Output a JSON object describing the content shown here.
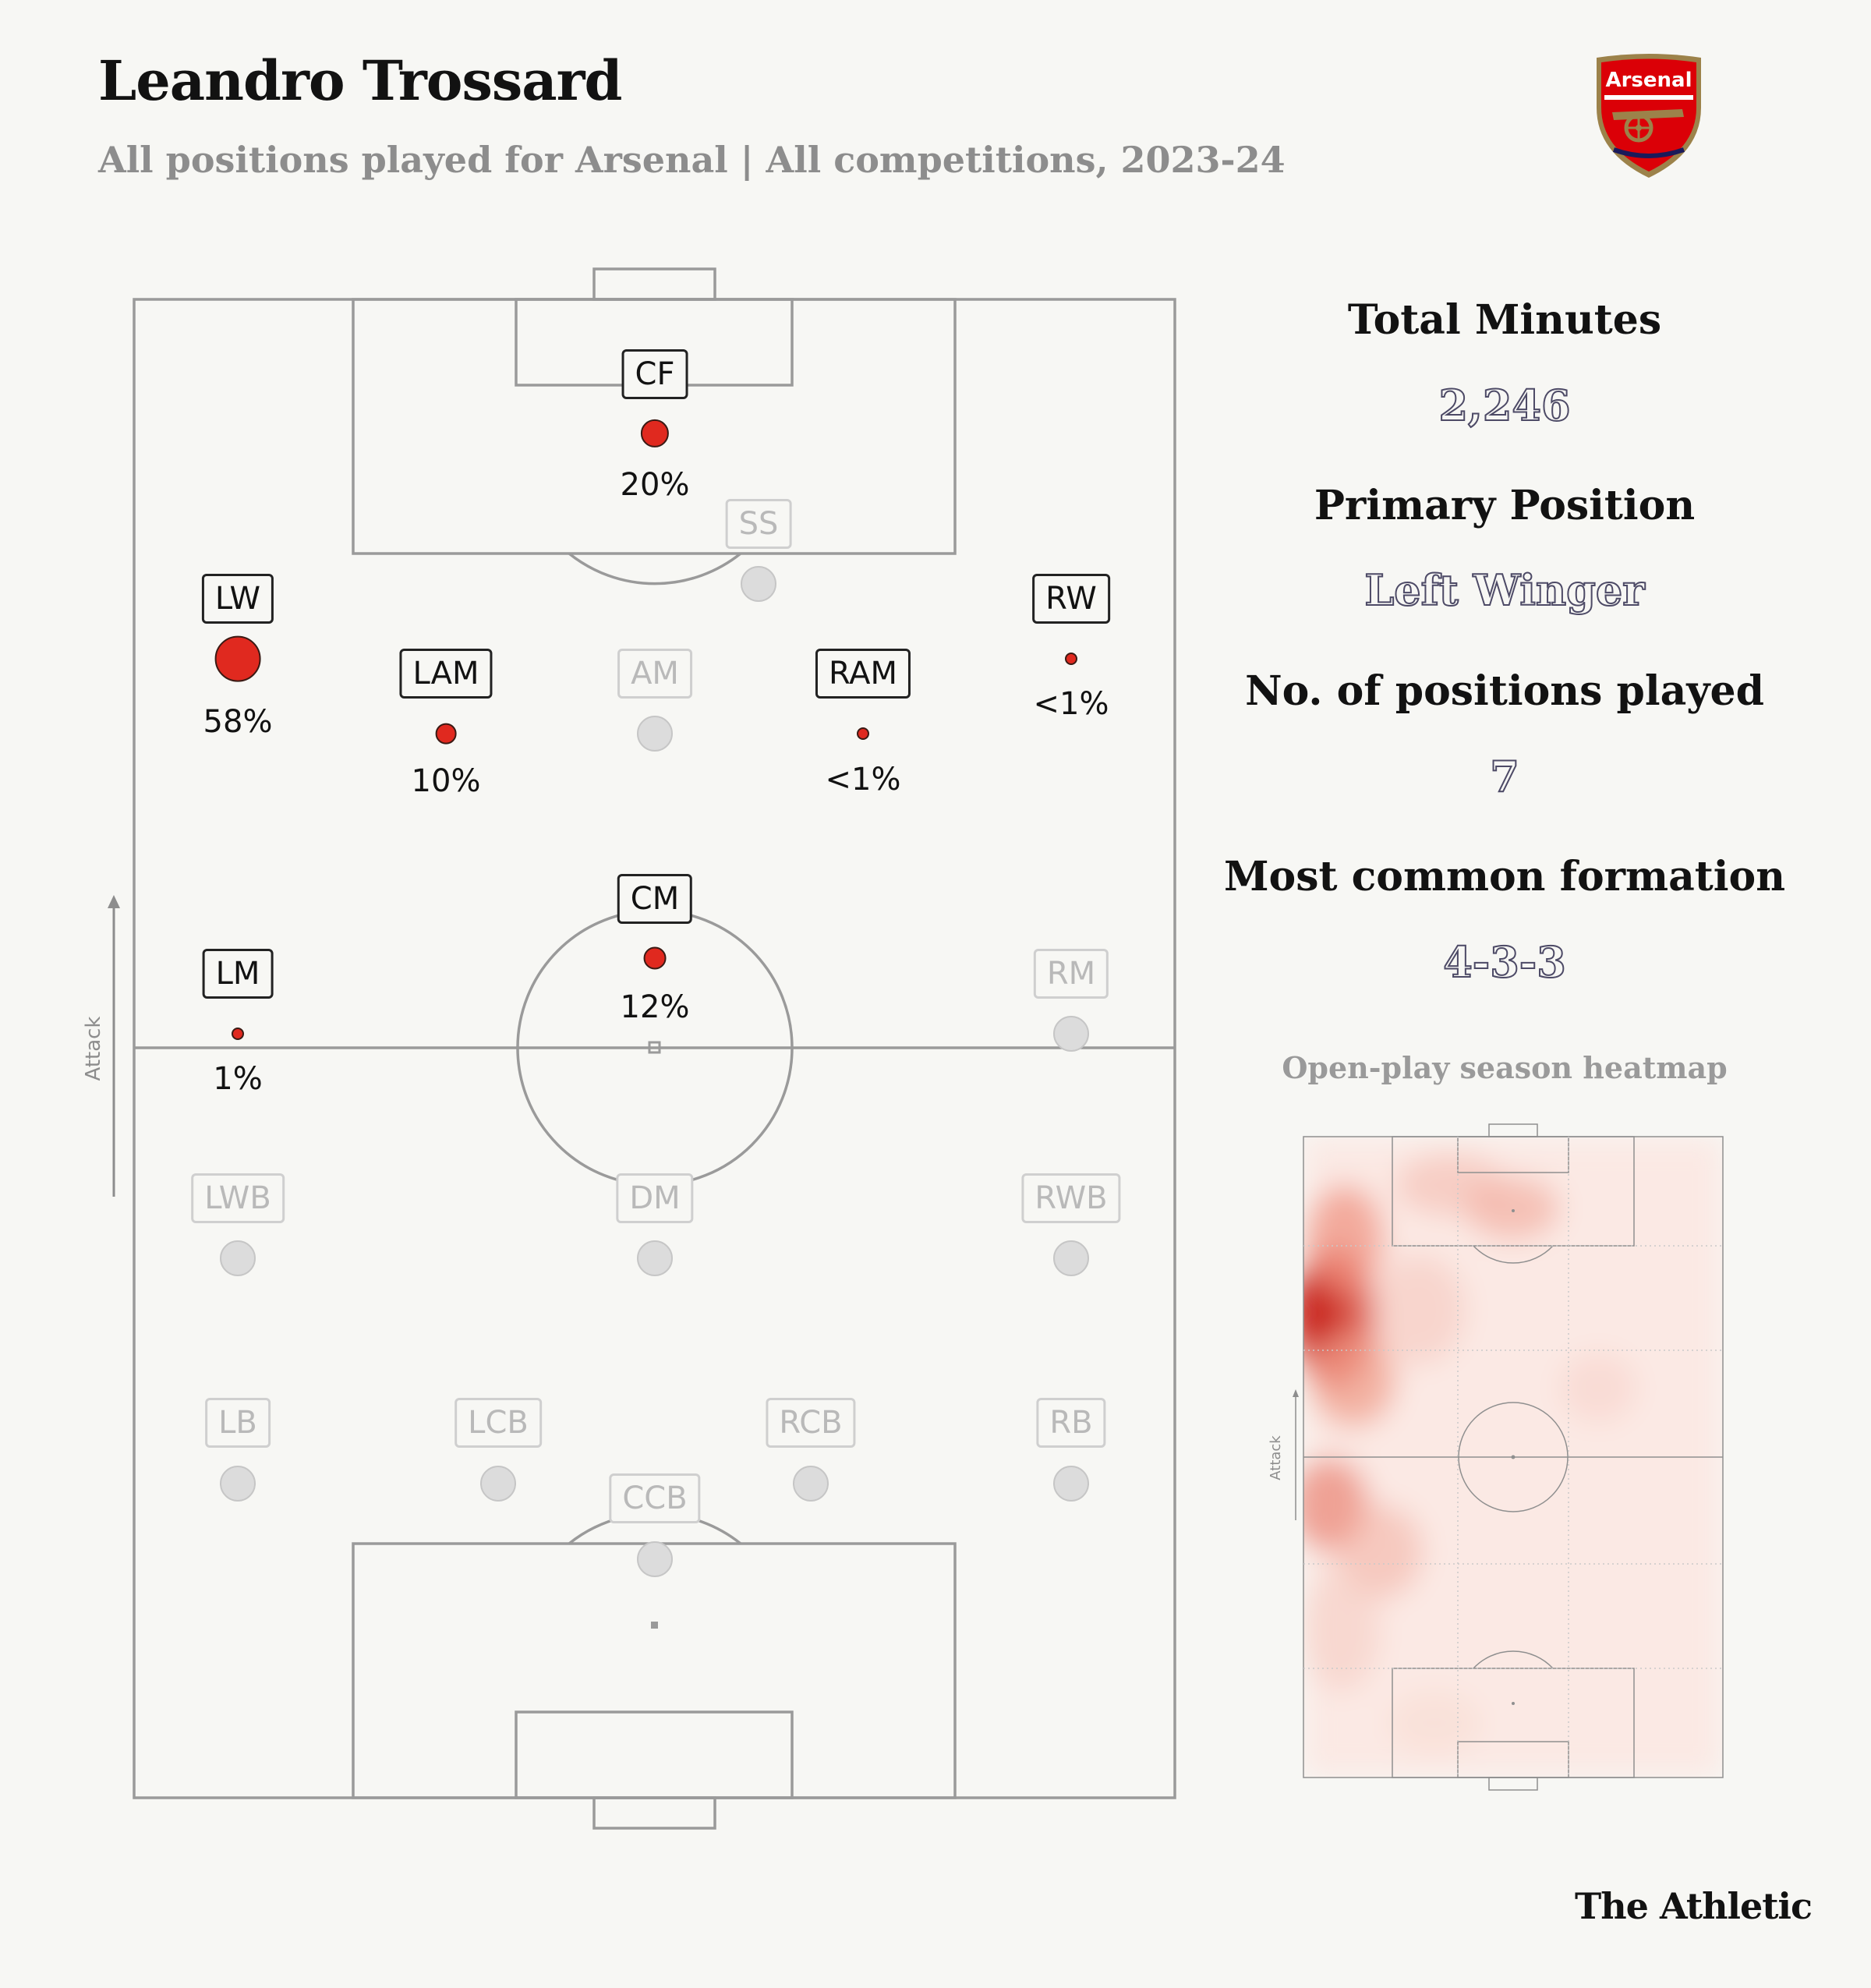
{
  "header": {
    "title": "Leandro Trossard",
    "subtitle": "All positions played for Arsenal | All competitions, 2023-24",
    "crest_text": "Arsenal"
  },
  "pitch": {
    "attack_label": "Attack",
    "positions": [
      {
        "label": "CF",
        "pct": "20%",
        "share": 0.2,
        "active": true
      },
      {
        "label": "SS",
        "pct": "",
        "share": 0,
        "active": false
      },
      {
        "label": "LW",
        "pct": "58%",
        "share": 0.58,
        "active": true
      },
      {
        "label": "RW",
        "pct": "<1%",
        "share": 0.005,
        "active": true
      },
      {
        "label": "LAM",
        "pct": "10%",
        "share": 0.1,
        "active": true
      },
      {
        "label": "AM",
        "pct": "",
        "share": 0,
        "active": false
      },
      {
        "label": "RAM",
        "pct": "<1%",
        "share": 0.005,
        "active": true
      },
      {
        "label": "CM",
        "pct": "12%",
        "share": 0.12,
        "active": true
      },
      {
        "label": "LM",
        "pct": "1%",
        "share": 0.01,
        "active": true
      },
      {
        "label": "RM",
        "pct": "",
        "share": 0,
        "active": false
      },
      {
        "label": "LWB",
        "pct": "",
        "share": 0,
        "active": false
      },
      {
        "label": "DM",
        "pct": "",
        "share": 0,
        "active": false
      },
      {
        "label": "RWB",
        "pct": "",
        "share": 0,
        "active": false
      },
      {
        "label": "LB",
        "pct": "",
        "share": 0,
        "active": false
      },
      {
        "label": "LCB",
        "pct": "",
        "share": 0,
        "active": false
      },
      {
        "label": "RCB",
        "pct": "",
        "share": 0,
        "active": false
      },
      {
        "label": "RB",
        "pct": "",
        "share": 0,
        "active": false
      },
      {
        "label": "CCB",
        "pct": "",
        "share": 0,
        "active": false
      }
    ]
  },
  "stats": {
    "total_minutes_label": "Total Minutes",
    "total_minutes": "2,246",
    "primary_position_label": "Primary Position",
    "primary_position": "Left Winger",
    "positions_played_label": "No. of positions played",
    "positions_played": "7",
    "formation_label": "Most common formation",
    "formation": "4-3-3"
  },
  "heatmap": {
    "title": "Open-play season heatmap",
    "attack_label": "Attack"
  },
  "colors": {
    "accent": "#e0291f",
    "background": "#f7f7f4",
    "value_outline": "#4d4a66",
    "inactive": "#b9b9b9"
  },
  "brand": "The Athletic"
}
